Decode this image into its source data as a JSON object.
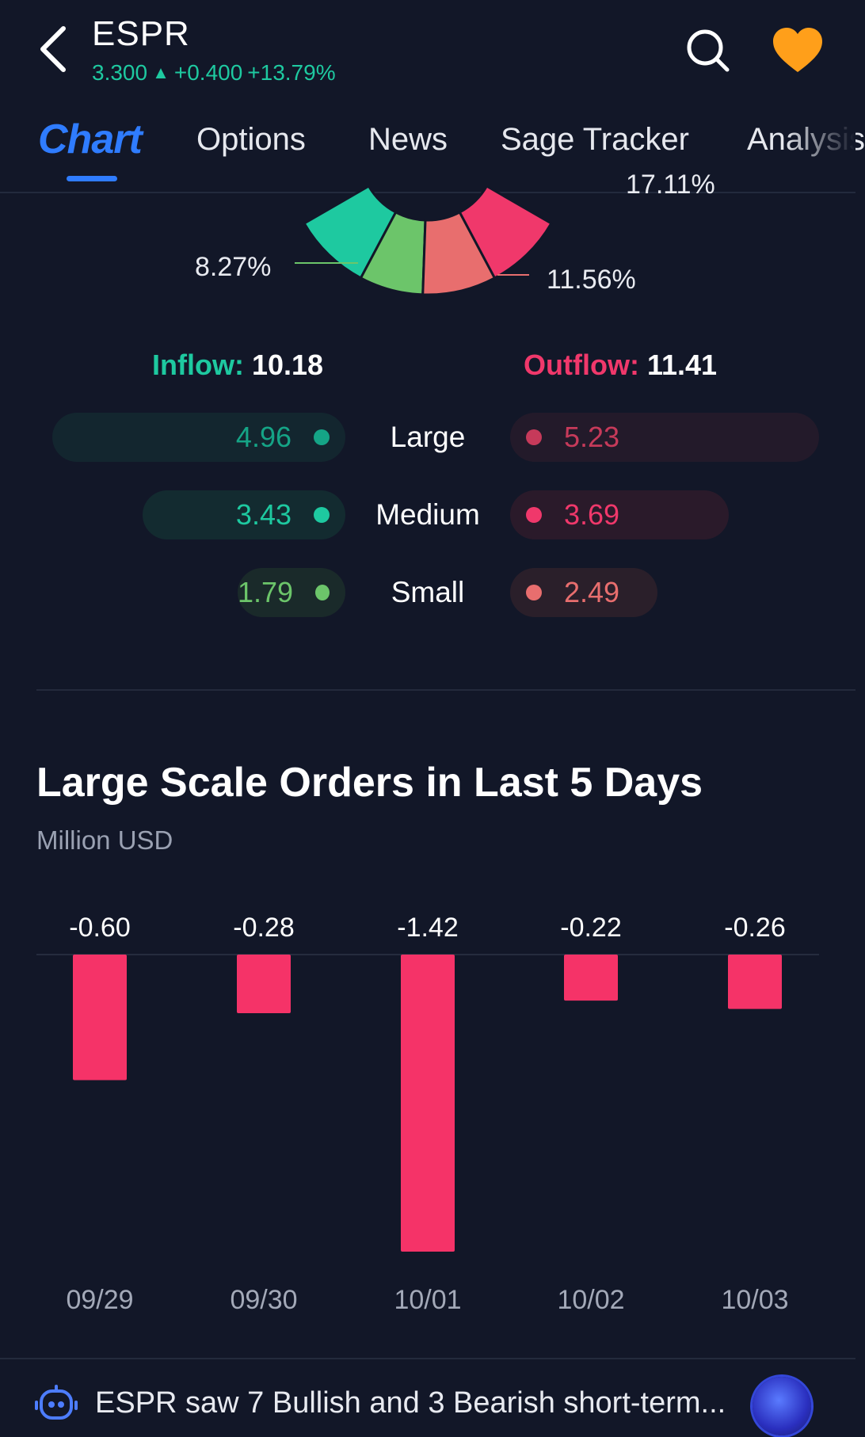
{
  "header": {
    "ticker": "ESPR",
    "price": "3.300",
    "change": "+0.400",
    "change_pct": "+13.79%",
    "icons": {
      "back": "chevron-left-icon",
      "search": "search-icon",
      "favorite": "heart-icon"
    },
    "colors": {
      "up": "#1ec9a0",
      "favorite": "#ff9f1a"
    }
  },
  "tabs": [
    {
      "label": "Chart",
      "active": true
    },
    {
      "label": "Options"
    },
    {
      "label": "News"
    },
    {
      "label": "Sage Tracker"
    },
    {
      "label": "Analysis"
    }
  ],
  "donut": {
    "labels": {
      "top_right_partial": "17.11%",
      "left": "8.27%",
      "right": "11.56%"
    },
    "colors": [
      "#1ec9a0",
      "#6cc56a",
      "#e86e6e",
      "#f0386b"
    ]
  },
  "flow": {
    "inflow_label": "Inflow:",
    "inflow_value": "10.18",
    "outflow_label": "Outflow:",
    "outflow_value": "11.41",
    "rows": [
      {
        "label": "Large",
        "in": "4.96",
        "out": "5.23",
        "in_color": "#15a486",
        "out_color": "#c63a5a"
      },
      {
        "label": "Medium",
        "in": "3.43",
        "out": "3.69",
        "in_color": "#1ec9a0",
        "out_color": "#f0386b"
      },
      {
        "label": "Small",
        "in": "1.79",
        "out": "2.49",
        "in_color": "#6cc56a",
        "out_color": "#e86e6e"
      }
    ]
  },
  "chart_data": {
    "type": "bar",
    "title": "Large Scale Orders in Last 5 Days",
    "ylabel": "Million USD",
    "categories": [
      "09/29",
      "09/30",
      "10/01",
      "10/02",
      "10/03"
    ],
    "values": [
      -0.6,
      -0.28,
      -1.42,
      -0.22,
      -0.26
    ],
    "value_labels": [
      "-0.60",
      "-0.28",
      "-1.42",
      "-0.22",
      "-0.26"
    ],
    "ylim": [
      -1.42,
      0
    ],
    "color": "#f53368"
  },
  "bottom_bar": {
    "text": "ESPR saw 7 Bullish and 3 Bearish short-term...",
    "icon": "robot-icon"
  }
}
